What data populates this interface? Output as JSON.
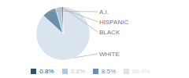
{
  "chart_data": {
    "type": "pie",
    "categories": [
      "WHITE",
      "A.I.",
      "HISPANIC",
      "BLACK"
    ],
    "values": [
      86.9,
      8.5,
      3.8,
      0.8
    ],
    "value_labels": [
      "86.9%",
      "8.5%",
      "3.8%",
      "0.8%"
    ],
    "colors": [
      "#d9e4ee",
      "#6b91aa",
      "#b4c9d8",
      "#2b5470"
    ],
    "legend": "bottom"
  }
}
